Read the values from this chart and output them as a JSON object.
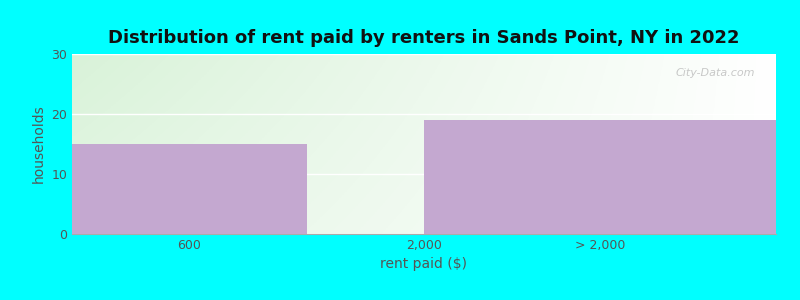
{
  "title": "Distribution of rent paid by renters in Sands Point, NY in 2022",
  "xlabel": "rent paid ($)",
  "ylabel": "households",
  "categories": [
    "600",
    "2,000",
    "> 2,000"
  ],
  "values": [
    15,
    0,
    19
  ],
  "bar_color": "#C4A8D0",
  "ylim": [
    0,
    30
  ],
  "yticks": [
    0,
    10,
    20,
    30
  ],
  "background_outer": "#00FFFF",
  "gradient_top": "#cce8cc",
  "gradient_bottom": "#f0f8f0",
  "watermark": "City-Data.com",
  "title_fontsize": 13,
  "axis_label_fontsize": 10,
  "tick_fontsize": 9
}
